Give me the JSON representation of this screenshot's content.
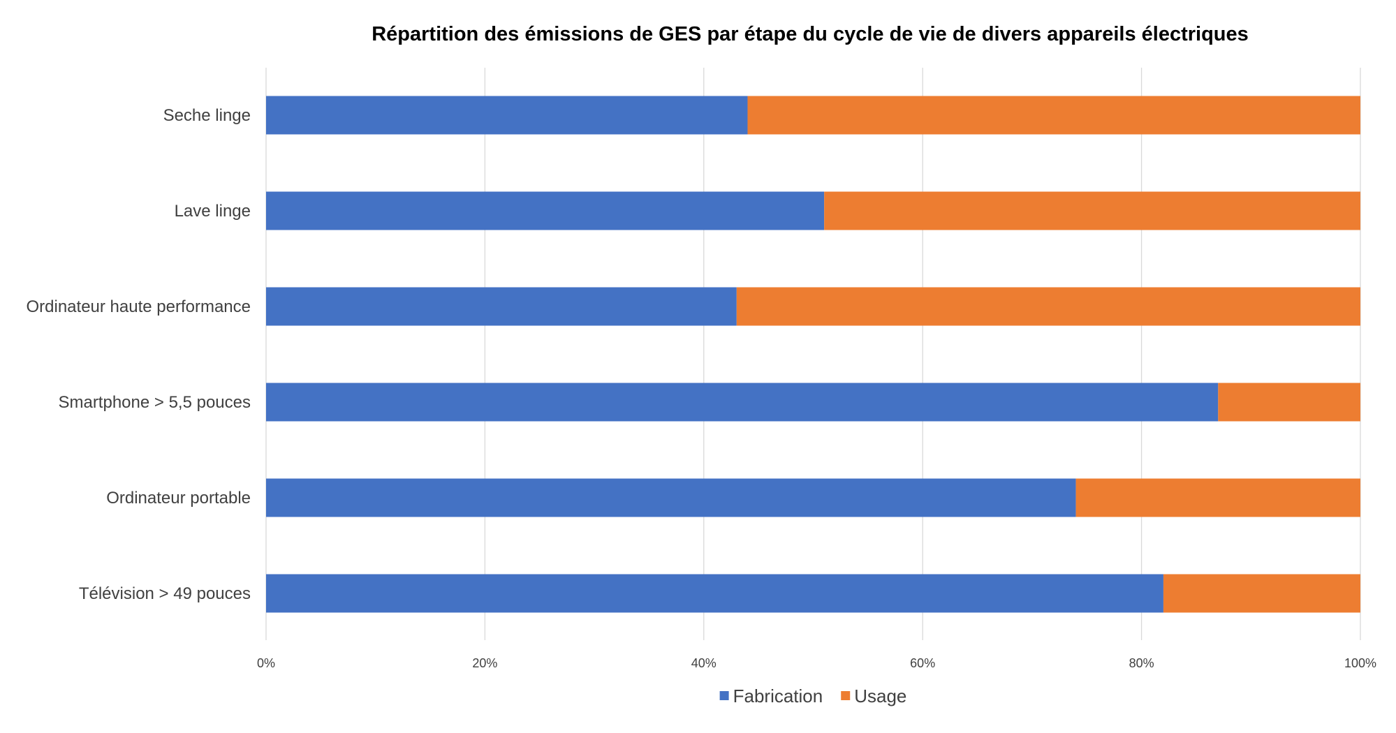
{
  "chart_data": {
    "type": "bar",
    "orientation": "horizontal",
    "stacked": "percent",
    "title": "Répartition des émissions de GES par étape du cycle de vie de divers appareils électriques",
    "xlabel": "",
    "ylabel": "",
    "categories": [
      "Seche linge",
      "Lave linge",
      "Ordinateur haute performance",
      "Smartphone > 5,5 pouces",
      "Ordinateur portable",
      "Télévision > 49 pouces"
    ],
    "series": [
      {
        "name": "Fabrication",
        "color": "#4472c4",
        "values": [
          44,
          51,
          43,
          87,
          74,
          82
        ]
      },
      {
        "name": "Usage",
        "color": "#ed7d31",
        "values": [
          56,
          49,
          57,
          13,
          26,
          18
        ]
      }
    ],
    "xlim": [
      0,
      100
    ],
    "x_ticks": [
      0,
      20,
      40,
      60,
      80,
      100
    ],
    "x_tick_labels": [
      "0%",
      "20%",
      "40%",
      "60%",
      "80%",
      "100%"
    ],
    "grid": "vertical",
    "legend_position": "bottom"
  }
}
